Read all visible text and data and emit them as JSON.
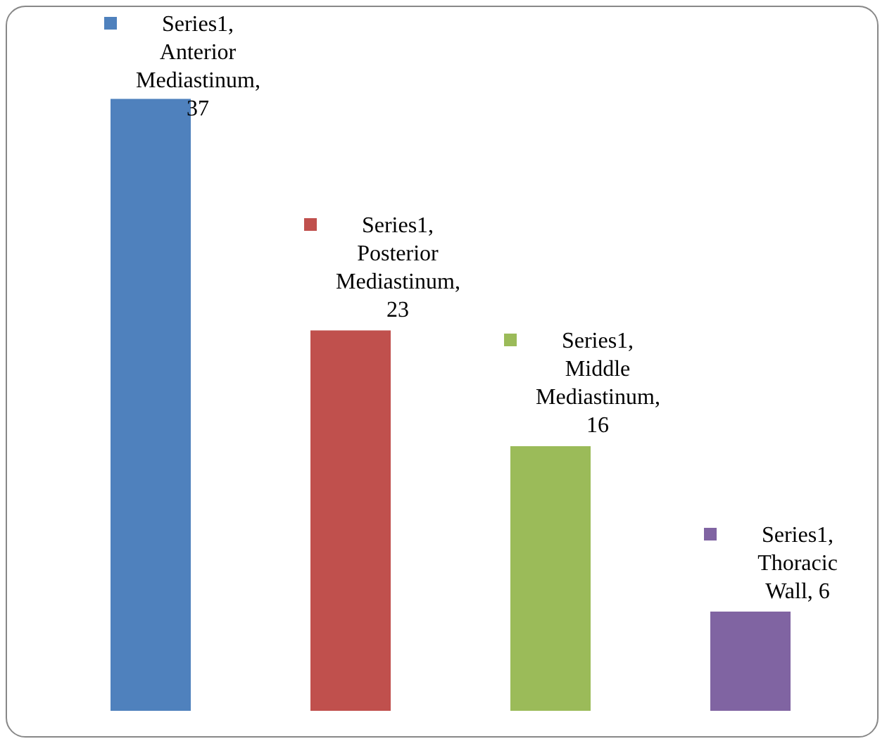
{
  "chart_data": {
    "type": "bar",
    "categories": [
      null,
      null,
      null,
      null
    ],
    "series": [
      {
        "colors": [
          "#4f81bd",
          "#c0504d",
          "#9bbb59",
          "#8064a2"
        ],
        "values": [
          37,
          23,
          16,
          6
        ],
        "value_labels": [
          "Series1, Anterior Mediastinum, 37",
          "Series1, Posterior Mediastinum, 23",
          "Series1, Middle Mediastinum, 16",
          "Series1, Thoracic Wall, 6"
        ]
      }
    ],
    "grid": false
  }
}
